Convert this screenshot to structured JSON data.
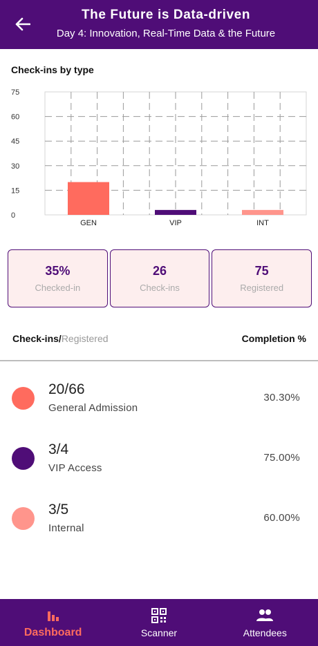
{
  "header": {
    "title": "The Future is Data-driven",
    "subtitle": "Day 4: Innovation, Real-Time Data & the Future"
  },
  "chart_section": {
    "title": "Check-ins by type"
  },
  "chart_data": {
    "type": "bar",
    "categories": [
      "GEN",
      "VIP",
      "INT"
    ],
    "values": [
      20,
      3,
      3
    ],
    "colors": [
      "#ff6b5e",
      "#4f0d77",
      "#ff958c"
    ],
    "ylim": [
      0,
      75
    ],
    "yticks": [
      0,
      15,
      30,
      45,
      60,
      75
    ],
    "grid": true
  },
  "stats": [
    {
      "value": "35%",
      "label": "Checked-in"
    },
    {
      "value": "26",
      "label": "Check-ins"
    },
    {
      "value": "75",
      "label": "Registered"
    }
  ],
  "list_header": {
    "left_bold": "Check-ins/",
    "left_muted": "Registered",
    "right": "Completion %"
  },
  "rows": [
    {
      "count": "20/66",
      "name": "General Admission",
      "pct": "30.30%",
      "color": "#ff6b5e"
    },
    {
      "count": "3/4",
      "name": "VIP Access",
      "pct": "75.00%",
      "color": "#4f0d77"
    },
    {
      "count": "3/5",
      "name": "Internal",
      "pct": "60.00%",
      "color": "#ff958c"
    }
  ],
  "nav": [
    {
      "label": "Dashboard",
      "icon": "bar-chart-icon",
      "active": true
    },
    {
      "label": "Scanner",
      "icon": "qr-code-icon",
      "active": false
    },
    {
      "label": "Attendees",
      "icon": "people-icon",
      "active": false
    }
  ],
  "accent_color": "#4f0d77",
  "highlight_color": "#ff6b5e"
}
